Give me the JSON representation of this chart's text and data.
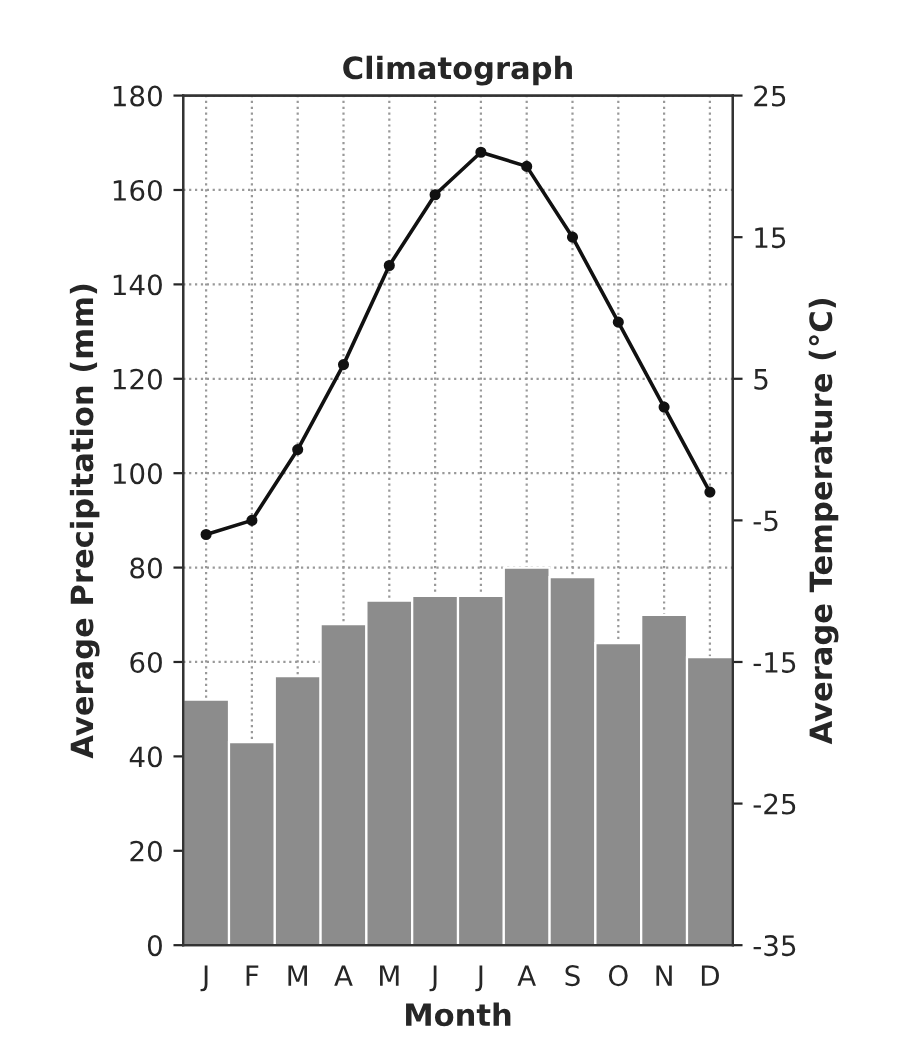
{
  "chart_data": {
    "type": "bar",
    "title": "Climatograph",
    "xlabel": "Month",
    "ylabel": "Average Precipitation (mm)",
    "y2label": "Average Temperature (°C)",
    "categories": [
      "J",
      "F",
      "M",
      "A",
      "M",
      "J",
      "J",
      "A",
      "S",
      "O",
      "N",
      "D"
    ],
    "series": [
      {
        "color": "#8c8c8c",
        "values": [
          52,
          43,
          57,
          68,
          73,
          74,
          74,
          80,
          78,
          64,
          70,
          61
        ]
      },
      {
        "type": "line",
        "axis": "y2",
        "color": "#111111",
        "marker": "circle",
        "line_style": "solid",
        "values": [
          -6,
          -5,
          0,
          6,
          13,
          18,
          21,
          20,
          15,
          9,
          3,
          -3
        ]
      }
    ],
    "ylim": [
      0,
      180
    ],
    "yticks": [
      0,
      20,
      40,
      60,
      80,
      100,
      120,
      140,
      160,
      180
    ],
    "y2lim": [
      -35,
      25
    ],
    "y2ticks": [
      -35,
      -25,
      -15,
      -5,
      5,
      15,
      25
    ],
    "grid": true,
    "legend": false
  }
}
